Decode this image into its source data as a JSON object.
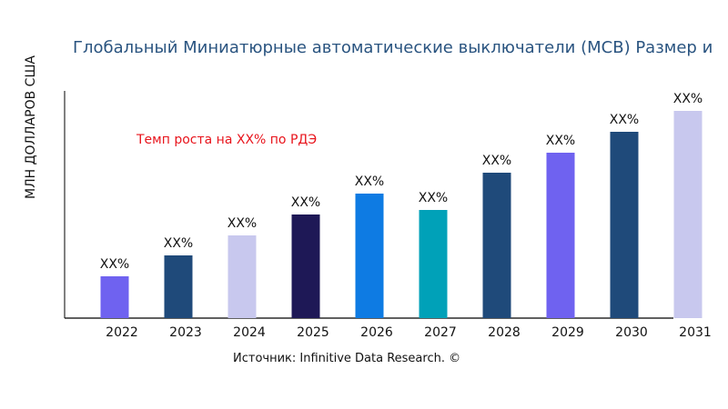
{
  "chart_data": {
    "type": "bar",
    "title": "Глобальный Миниатюрные автоматические выключатели (MCB) Размер и",
    "ylabel": "МЛН ДОЛЛАРОВ США",
    "xlabel": "",
    "categories": [
      "2022",
      "2023",
      "2024",
      "2025",
      "2026",
      "2027",
      "2028",
      "2029",
      "2030",
      "2031"
    ],
    "values": [
      46,
      69,
      91,
      114,
      137,
      119,
      160,
      182,
      205,
      228
    ],
    "data_labels": [
      "XX%",
      "XX%",
      "XX%",
      "XX%",
      "XX%",
      "XX%",
      "XX%",
      "XX%",
      "XX%",
      "XX%"
    ],
    "colors": [
      "#6F62F0",
      "#1F4A7A",
      "#C8C8EE",
      "#1E1856",
      "#0E7BE3",
      "#00A1B8",
      "#1F4A7A",
      "#6F62F0",
      "#1F4A7A",
      "#C8C8EE"
    ],
    "annotation": "Темп роста на XX% по РДЭ",
    "source": "Источник: Infinitive Data Research. ©",
    "grid": false,
    "legend": "none"
  }
}
